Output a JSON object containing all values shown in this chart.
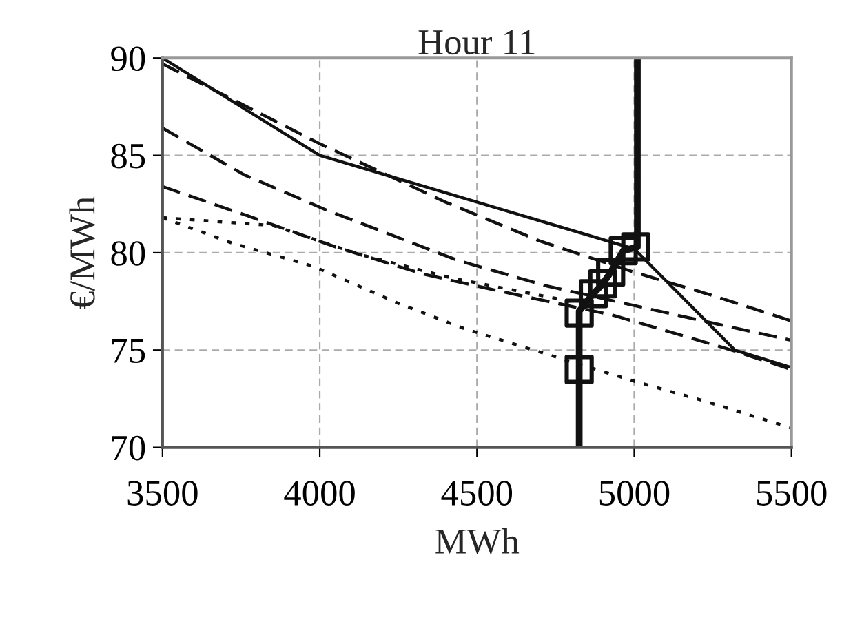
{
  "chart_data": {
    "type": "line",
    "title": "Hour 11",
    "xlabel": "MWh",
    "ylabel": "€/MWh",
    "xlim": [
      3500,
      5500
    ],
    "xticks": [
      3500,
      4000,
      4500,
      5000,
      5500
    ],
    "ylim": [
      70,
      90
    ],
    "yticks": [
      70,
      75,
      80,
      85,
      90
    ],
    "grid": true,
    "marker": "none",
    "series": [
      {
        "color": "#111111",
        "line_style": "solid",
        "x": [
          3500,
          4000,
          5000,
          5320,
          5500
        ],
        "values": [
          90,
          85,
          80.2,
          75,
          74.1
        ]
      },
      {
        "color": "#111111",
        "line_style": "dashed",
        "x": [
          3500,
          4000,
          4400,
          4700,
          5000,
          5250,
          5500
        ],
        "values": [
          89.7,
          85.6,
          82.6,
          80.6,
          79,
          77.8,
          76.5
        ]
      },
      {
        "color": "#111111",
        "line_style": "dashed",
        "x": [
          3500,
          3760,
          4020,
          4440,
          4720,
          5190,
          5500
        ],
        "values": [
          86.4,
          84,
          82.2,
          79.6,
          78.3,
          76.6,
          75.5
        ]
      },
      {
        "color": "#111111",
        "line_style": "dashed",
        "x": [
          3500,
          3770,
          4050,
          4330,
          4580,
          4930,
          5310,
          5500
        ],
        "values": [
          83.4,
          81.9,
          80.3,
          78.9,
          78,
          76.8,
          75,
          74
        ]
      },
      {
        "color": "#111111",
        "line_style": "dotted",
        "x": [
          3500,
          3850,
          4130,
          4420,
          4800
        ],
        "values": [
          81.8,
          81.4,
          79.9,
          78.7,
          77.5
        ]
      },
      {
        "color": "#111111",
        "line_style": "dotted",
        "x": [
          3500,
          3720,
          3980,
          4250,
          4460,
          4700,
          5000,
          5220,
          5500
        ],
        "values": [
          81.8,
          80.5,
          79.3,
          77.4,
          76.1,
          74.9,
          73.4,
          72.4,
          71
        ]
      },
      {
        "color": "#111111",
        "line_style": "solid",
        "x": [
          4825,
          4825,
          4825,
          4870,
          4900,
          4925,
          4965,
          5010,
          5010
        ],
        "values": [
          70,
          74,
          77,
          77.9,
          78.4,
          79,
          80.1,
          80.3,
          90
        ]
      },
      {
        "type": "scatter",
        "marker": "square",
        "color": "#111111",
        "x": [
          4825,
          4825,
          4870,
          4900,
          4925,
          4965,
          5005
        ],
        "values": [
          74,
          76.9,
          77.9,
          78.4,
          79,
          80.1,
          80.3
        ]
      }
    ]
  }
}
